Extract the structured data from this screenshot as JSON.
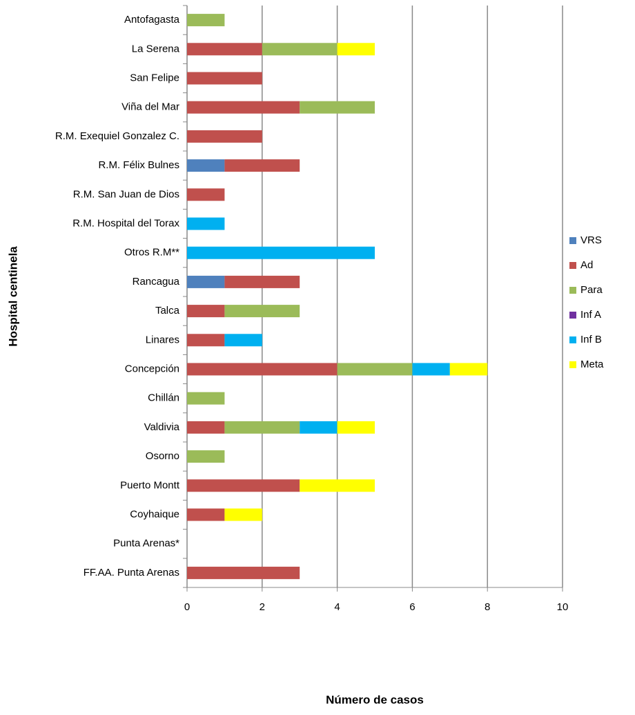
{
  "chart_data": {
    "type": "stacked-bar-horizontal",
    "x_label": "Número de casos",
    "y_label": "Hospital  centinela",
    "categories": [
      "Antofagasta",
      "La Serena",
      "San Felipe",
      "Viña del Mar",
      "R.M. Exequiel Gonzalez C.",
      "R.M. Félix Bulnes",
      "R.M. San Juan de Dios",
      "R.M. Hospital del Torax",
      "Otros R.M**",
      "Rancagua",
      "Talca",
      "Linares",
      "Concepción",
      "Chillán",
      "Valdivia",
      "Osorno",
      "Puerto Montt",
      "Coyhaique",
      "Punta Arenas*",
      "FF.AA. Punta Arenas"
    ],
    "series": [
      {
        "name": "VRS",
        "color": "#4f81bd",
        "values": [
          0,
          0,
          0,
          0,
          0,
          1,
          0,
          0,
          0,
          1,
          0,
          0,
          0,
          0,
          0,
          0,
          0,
          0,
          0,
          0
        ]
      },
      {
        "name": "Ad",
        "color": "#c0504d",
        "values": [
          0,
          2,
          2,
          3,
          2,
          2,
          1,
          0,
          0,
          2,
          1,
          1,
          4,
          0,
          1,
          0,
          3,
          1,
          0,
          3
        ]
      },
      {
        "name": "Para",
        "color": "#9bbb59",
        "values": [
          1,
          2,
          0,
          2,
          0,
          0,
          0,
          0,
          0,
          0,
          2,
          0,
          2,
          1,
          2,
          1,
          0,
          0,
          0,
          0
        ]
      },
      {
        "name": "Inf A",
        "color": "#7030a0",
        "values": [
          0,
          0,
          0,
          0,
          0,
          0,
          0,
          0,
          0,
          0,
          0,
          0,
          0,
          0,
          0,
          0,
          0,
          0,
          0,
          0
        ]
      },
      {
        "name": "Inf B",
        "color": "#00b0f0",
        "values": [
          0,
          0,
          0,
          0,
          0,
          0,
          0,
          1,
          5,
          0,
          0,
          1,
          1,
          0,
          1,
          0,
          0,
          0,
          0,
          0
        ]
      },
      {
        "name": "Meta",
        "color": "#ffff00",
        "values": [
          0,
          1,
          0,
          0,
          0,
          0,
          0,
          0,
          0,
          0,
          0,
          0,
          1,
          0,
          1,
          0,
          2,
          1,
          0,
          0
        ]
      }
    ],
    "xlim": [
      0,
      10
    ],
    "xticks": [
      0,
      2,
      4,
      6,
      8,
      10
    ],
    "grid": true,
    "legend": "right"
  }
}
